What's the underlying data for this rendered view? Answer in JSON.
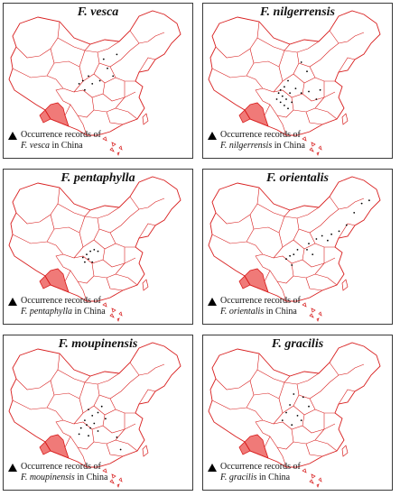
{
  "panels": [
    {
      "title": "F. vesca",
      "legend_line1": "Occurrence records of",
      "species": "F. vesca",
      "suffix": " in China",
      "records": [
        [
          0.53,
          0.36
        ],
        [
          0.55,
          0.42
        ],
        [
          0.58,
          0.47
        ],
        [
          0.51,
          0.5
        ],
        [
          0.45,
          0.47
        ],
        [
          0.47,
          0.52
        ],
        [
          0.42,
          0.5
        ],
        [
          0.6,
          0.33
        ],
        [
          0.43,
          0.56
        ],
        [
          0.4,
          0.52
        ]
      ]
    },
    {
      "title": "F. nilgerrensis",
      "legend_line1": "Occurrence records of",
      "species": "F. nilgerrensis",
      "suffix": " in China",
      "records": [
        [
          0.52,
          0.38
        ],
        [
          0.55,
          0.44
        ],
        [
          0.45,
          0.5
        ],
        [
          0.43,
          0.54
        ],
        [
          0.41,
          0.56
        ],
        [
          0.4,
          0.58
        ],
        [
          0.42,
          0.6
        ],
        [
          0.44,
          0.62
        ],
        [
          0.46,
          0.58
        ],
        [
          0.39,
          0.62
        ],
        [
          0.41,
          0.64
        ],
        [
          0.43,
          0.66
        ],
        [
          0.47,
          0.64
        ],
        [
          0.49,
          0.55
        ],
        [
          0.52,
          0.58
        ],
        [
          0.56,
          0.57
        ],
        [
          0.45,
          0.68
        ],
        [
          0.6,
          0.62
        ],
        [
          0.62,
          0.56
        ]
      ]
    },
    {
      "title": "F. pentaphylla",
      "legend_line1": "Occurrence records of",
      "species": "F. pentaphylla",
      "suffix": " in China",
      "records": [
        [
          0.44,
          0.55
        ],
        [
          0.46,
          0.53
        ],
        [
          0.48,
          0.52
        ],
        [
          0.45,
          0.58
        ],
        [
          0.43,
          0.6
        ],
        [
          0.42,
          0.57
        ],
        [
          0.47,
          0.6
        ],
        [
          0.5,
          0.53
        ]
      ]
    },
    {
      "title": "F. orientalis",
      "legend_line1": "Occurrence records of",
      "species": "F. orientalis",
      "suffix": " in China",
      "records": [
        [
          0.6,
          0.45
        ],
        [
          0.63,
          0.43
        ],
        [
          0.66,
          0.46
        ],
        [
          0.68,
          0.42
        ],
        [
          0.72,
          0.4
        ],
        [
          0.76,
          0.36
        ],
        [
          0.8,
          0.28
        ],
        [
          0.84,
          0.22
        ],
        [
          0.88,
          0.2
        ],
        [
          0.56,
          0.48
        ],
        [
          0.5,
          0.52
        ],
        [
          0.48,
          0.55
        ],
        [
          0.46,
          0.56
        ],
        [
          0.44,
          0.58
        ],
        [
          0.47,
          0.62
        ],
        [
          0.55,
          0.52
        ],
        [
          0.58,
          0.55
        ]
      ]
    },
    {
      "title": "F. moupinensis",
      "legend_line1": "Occurrence records of",
      "species": "F. moupinensis",
      "suffix": " in China",
      "records": [
        [
          0.45,
          0.48
        ],
        [
          0.47,
          0.52
        ],
        [
          0.5,
          0.5
        ],
        [
          0.43,
          0.55
        ],
        [
          0.44,
          0.58
        ],
        [
          0.46,
          0.6
        ],
        [
          0.41,
          0.6
        ],
        [
          0.48,
          0.57
        ],
        [
          0.52,
          0.46
        ],
        [
          0.54,
          0.54
        ],
        [
          0.4,
          0.64
        ],
        [
          0.45,
          0.65
        ],
        [
          0.5,
          0.62
        ],
        [
          0.6,
          0.66
        ],
        [
          0.62,
          0.74
        ]
      ]
    },
    {
      "title": "F. gracilis",
      "legend_line1": "Occurrence records of",
      "species": "F. gracilis",
      "suffix": " in China",
      "records": [
        [
          0.48,
          0.38
        ],
        [
          0.53,
          0.4
        ],
        [
          0.56,
          0.46
        ],
        [
          0.46,
          0.45
        ],
        [
          0.44,
          0.5
        ],
        [
          0.5,
          0.52
        ],
        [
          0.52,
          0.55
        ],
        [
          0.42,
          0.55
        ],
        [
          0.47,
          0.58
        ]
      ]
    }
  ]
}
